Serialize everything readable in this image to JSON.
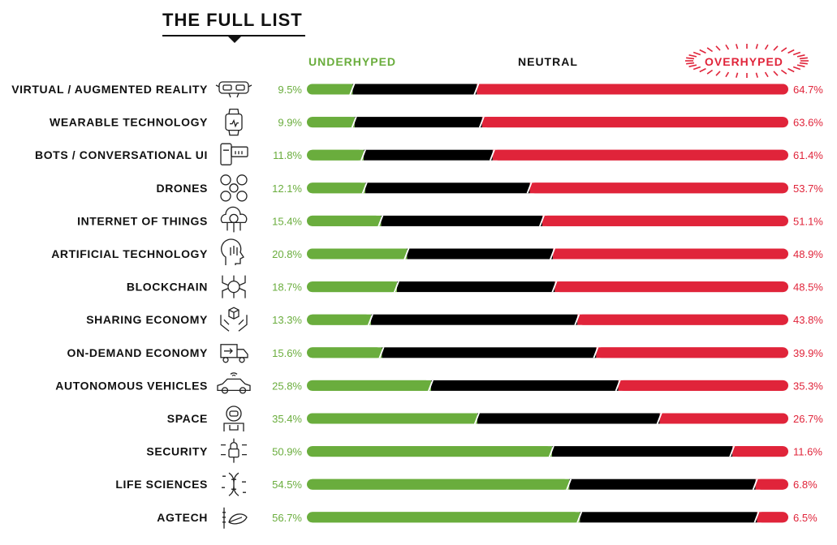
{
  "header": {
    "title": "THE FULL LIST"
  },
  "legend": {
    "underhyped": "UNDERHYPED",
    "neutral": "NEUTRAL",
    "overhyped": "OVERHYPED"
  },
  "colors": {
    "underhyped": "#6aad3d",
    "neutral": "#000000",
    "overhyped": "#e0243a",
    "text": "#111111"
  },
  "chart_data": {
    "type": "bar",
    "stacked": true,
    "orientation": "horizontal",
    "title": "THE FULL LIST",
    "legend_position": "top",
    "xlim": [
      0,
      100
    ],
    "categories": [
      "VIRTUAL / AUGMENTED REALITY",
      "WEARABLE TECHNOLOGY",
      "BOTS / CONVERSATIONAL UI",
      "DRONES",
      "INTERNET OF THINGS",
      "ARTIFICIAL TECHNOLOGY",
      "BLOCKCHAIN",
      "SHARING ECONOMY",
      "ON-DEMAND ECONOMY",
      "AUTONOMOUS VEHICLES",
      "SPACE",
      "SECURITY",
      "LIFE SCIENCES",
      "AGTECH"
    ],
    "icons": [
      "vr-headset-icon",
      "smartwatch-icon",
      "chatbot-icon",
      "drone-icon",
      "cloud-network-icon",
      "ai-head-icon",
      "blockchain-coin-icon",
      "hands-box-icon",
      "delivery-truck-icon",
      "autonomous-car-icon",
      "astronaut-icon",
      "security-lock-icon",
      "dna-icon",
      "plant-leaf-icon"
    ],
    "series": [
      {
        "name": "UNDERHYPED",
        "values": [
          9.5,
          9.9,
          11.8,
          12.1,
          15.4,
          20.8,
          18.7,
          13.3,
          15.6,
          25.8,
          35.4,
          50.9,
          54.5,
          56.7
        ]
      },
      {
        "name": "NEUTRAL",
        "values": [
          25.8,
          26.5,
          26.8,
          34.2,
          33.5,
          30.3,
          32.8,
          42.9,
          44.5,
          38.9,
          37.9,
          37.5,
          38.7,
          36.8
        ]
      },
      {
        "name": "OVERHYPED",
        "values": [
          64.7,
          63.6,
          61.4,
          53.7,
          51.1,
          48.9,
          48.5,
          43.8,
          39.9,
          35.3,
          26.7,
          11.6,
          6.8,
          6.5
        ]
      }
    ],
    "labels_under": [
      "9.5%",
      "9.9%",
      "11.8%",
      "12.1%",
      "15.4%",
      "20.8%",
      "18.7%",
      "13.3%",
      "15.6%",
      "25.8%",
      "35.4%",
      "50.9%",
      "54.5%",
      "56.7%"
    ],
    "labels_over": [
      "64.7%",
      "63.6%",
      "61.4%",
      "53.7%",
      "51.1%",
      "48.9%",
      "48.5%",
      "43.8%",
      "39.9%",
      "35.3%",
      "26.7%",
      "11.6%",
      "6.8%",
      "6.5%"
    ]
  }
}
